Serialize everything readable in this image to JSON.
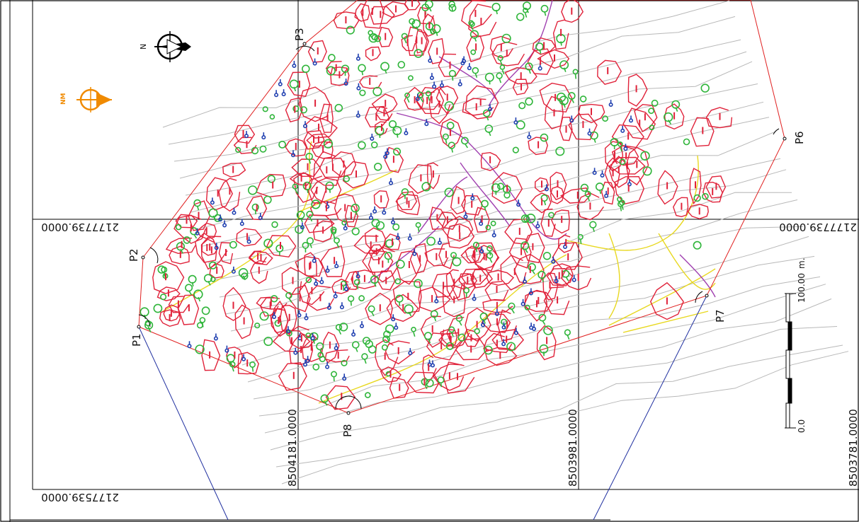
{
  "map": {
    "colors": {
      "boundary": "#e02020",
      "parcel": "#e0223a",
      "tree": "#2fb53a",
      "blue_symbol": "#1f3fb0",
      "road_yellow": "#e8d820",
      "road_purple": "#a040b0",
      "contour": "#b8b8b8",
      "grid": "#000000",
      "leader": "#2030a0",
      "nm_arrow": "#f08a00"
    },
    "grid_labels": {
      "y_top": "2177739.0000",
      "y_bottom": "2177539.0000",
      "y_top_right": "2177739.0000",
      "y_bottom_right_rot": "8503781.0000",
      "x_left": "8504181.0000",
      "x_mid": "8503981.0000"
    },
    "points": [
      "P1",
      "P2",
      "P3",
      "P6",
      "P7",
      "P8"
    ],
    "north_label": "N",
    "nm_label": "NM",
    "scale": {
      "start": "0.0",
      "end": "100.00",
      "unit": "m."
    }
  }
}
